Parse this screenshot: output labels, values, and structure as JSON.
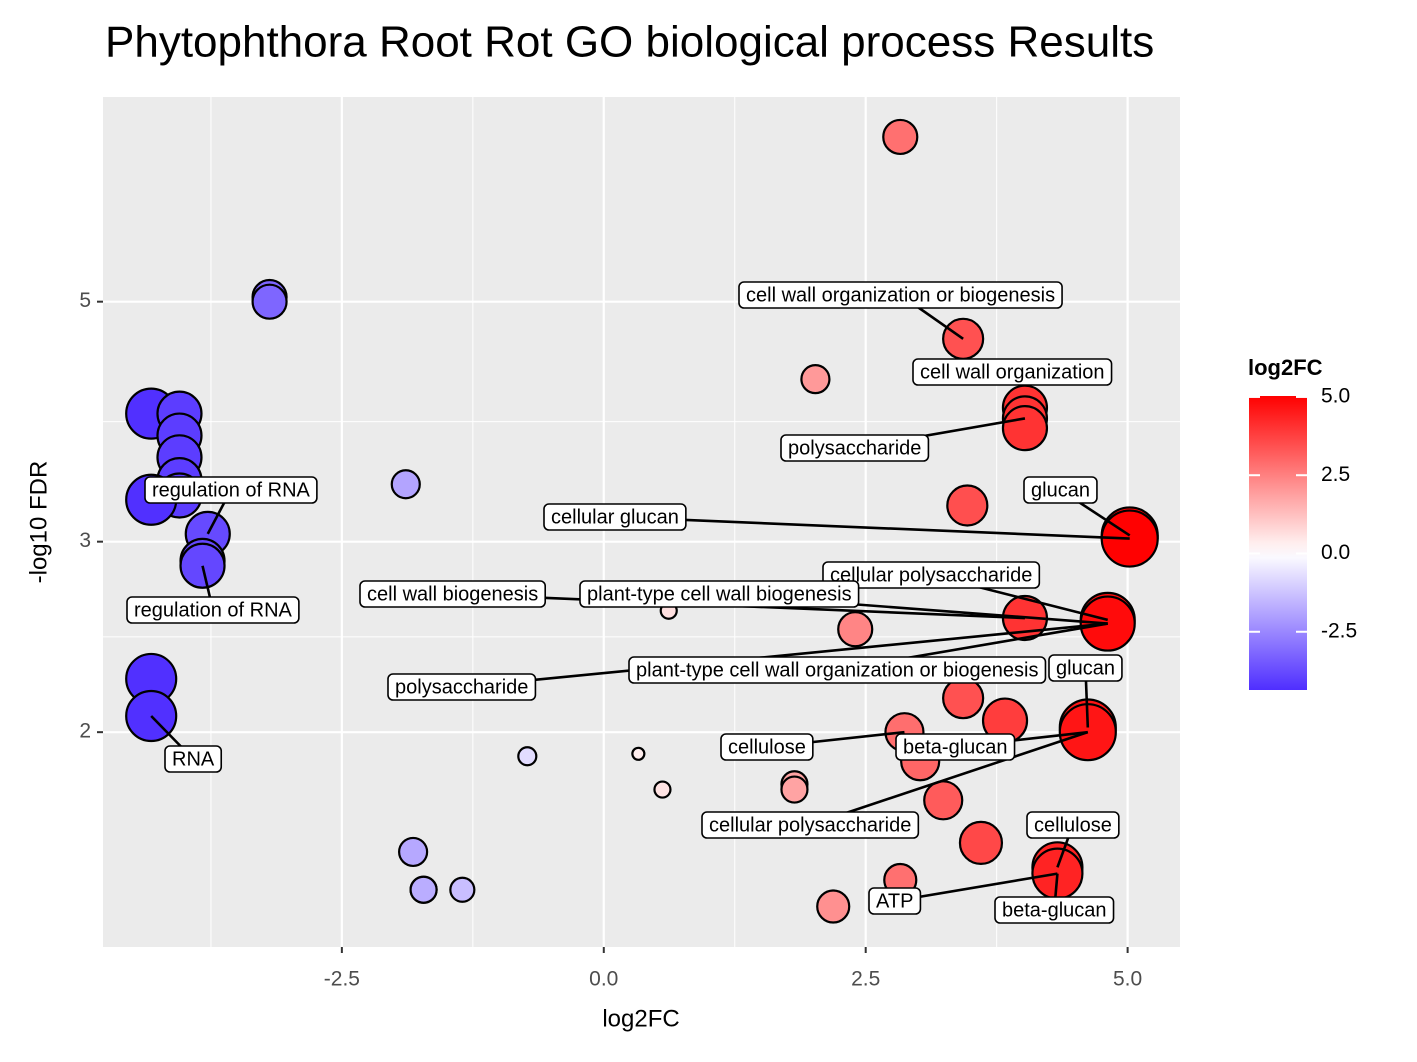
{
  "chart_data": {
    "type": "scatter",
    "title": "Phytophthora Root Rot GO biological process Results",
    "x_label": "log2FC",
    "y_label": "-log10 FDR",
    "x": [
      2.83,
      -3.19,
      -3.19,
      3.43,
      2.02,
      4.02,
      4.02,
      4.02,
      -4.32,
      -4.05,
      -4.05,
      -4.05,
      -4.05,
      -4.05,
      -4.32,
      -1.89,
      3.47,
      -3.78,
      -3.83,
      -3.83,
      5.02,
      5.02,
      4.81,
      4.81,
      4.02,
      2.4,
      0.62,
      3.43,
      3.83,
      2.87,
      3.02,
      3.24,
      3.6,
      4.62,
      4.62,
      -4.32,
      -4.32,
      -0.73,
      0.33,
      0.56,
      1.82,
      1.82,
      -1.82,
      -1.72,
      -1.72,
      -1.35,
      4.33,
      4.33,
      2.83,
      2.19
    ],
    "values": [
      7.1,
      5.05,
      5.0,
      4.62,
      4.24,
      3.99,
      3.9,
      3.82,
      3.94,
      3.94,
      3.76,
      3.59,
      3.42,
      3.31,
      3.28,
      3.39,
      3.24,
      3.05,
      2.88,
      2.85,
      3.04,
      3.02,
      2.54,
      2.52,
      2.55,
      2.49,
      2.59,
      2.15,
      2.05,
      2.0,
      1.88,
      1.73,
      1.58,
      2.02,
      2.0,
      2.24,
      2.07,
      1.9,
      1.91,
      1.77,
      1.79,
      1.77,
      1.55,
      1.43,
      1.43,
      1.43,
      1.5,
      1.48,
      1.46,
      1.38
    ],
    "sizes": [
      17,
      17,
      17,
      20,
      14,
      22,
      22,
      22,
      25,
      22,
      22,
      22,
      22,
      22,
      25,
      14,
      20,
      22,
      22,
      22,
      28,
      28,
      27,
      27,
      22,
      17,
      8,
      20,
      22,
      19,
      19,
      19,
      21,
      28,
      28,
      25,
      25,
      9,
      6,
      8,
      13,
      13,
      14,
      13,
      13,
      12,
      25,
      25,
      16,
      16
    ],
    "xlim": [
      -4.78,
      5.5
    ],
    "ylim": [
      1.266,
      7.73
    ],
    "log_y": true,
    "grid": true,
    "xticks": [
      -2.5,
      {
        "value": 0,
        "label": "0.0"
      },
      2.5,
      {
        "value": 5,
        "label": "5.0"
      }
    ],
    "yticks": [
      2,
      3,
      5
    ],
    "color_scale": {
      "title": "log2FC",
      "low": "#4f2eff",
      "mid": "#ffffff",
      "high": "#ff0000",
      "limits": [
        -4.36,
        5.03
      ],
      "ticks": [
        {
          "value": 5,
          "label": "5.0"
        },
        2.5,
        {
          "value": 0,
          "label": "0.0"
        },
        -2.5
      ]
    },
    "annotations": [
      "cell wall organization or biogenesis",
      "cell wall organization",
      "polysaccharide",
      "regulation of RNA",
      "glucan",
      "cellular glucan",
      "cellular polysaccharide",
      "plant-type cell wall biogenesis",
      "cell wall biogenesis",
      "regulation of RNA",
      "plant-type cell wall organization or biogenesis",
      "glucan",
      "polysaccharide",
      "cellulose",
      "beta-glucan",
      "RNA",
      "cellular polysaccharide",
      "cellulose",
      "ATP",
      "beta-glucan"
    ]
  }
}
